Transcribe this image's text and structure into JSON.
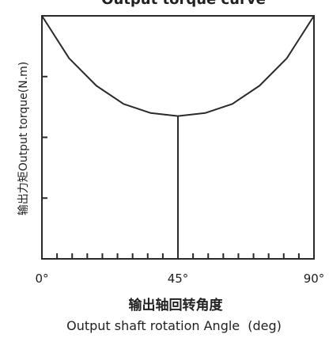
{
  "chart_data": {
    "type": "line",
    "title": "Output torque curve",
    "xlabel_cn": "输出轴回转角度",
    "xlabel_en": "Output shaft rotation Angle",
    "xlabel_unit": "(deg)",
    "ylabel": "输出力矩Output torque(N.m)",
    "x_tick_labels": [
      "0°",
      "45°",
      "90°"
    ],
    "x_tick_values": [
      0,
      45,
      90
    ],
    "xlim": [
      0,
      90
    ],
    "ylim": [
      0,
      4
    ],
    "y_ticks": [
      1,
      2,
      3
    ],
    "x_minor_ticks": [
      5,
      10,
      15,
      20,
      25,
      30,
      35,
      40,
      50,
      55,
      60,
      65,
      70,
      75,
      80,
      85
    ],
    "grid": false,
    "series": [
      {
        "x": [
          0,
          9,
          18,
          27,
          36,
          45,
          54,
          63,
          72,
          81,
          90
        ],
        "y": [
          4.0,
          3.3,
          2.85,
          2.55,
          2.4,
          2.35,
          2.4,
          2.55,
          2.85,
          3.3,
          4.0
        ]
      }
    ],
    "annotations": [
      {
        "type": "vline",
        "x": 45,
        "y_top": 2.35
      }
    ]
  }
}
